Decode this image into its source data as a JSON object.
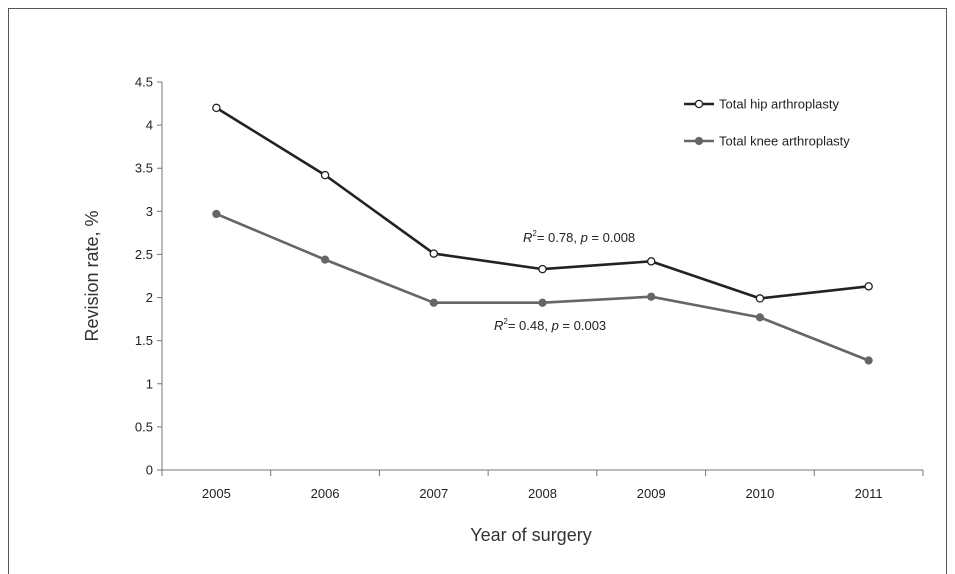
{
  "chart_data": {
    "type": "line",
    "title": "",
    "xlabel": "Year of surgery",
    "ylabel": "Revision rate, %",
    "categories": [
      "2005",
      "2006",
      "2007",
      "2008",
      "2009",
      "2010",
      "2011"
    ],
    "ylim": [
      0,
      4.5
    ],
    "yticks": [
      "0",
      "0.5",
      "1",
      "1.5",
      "2",
      "2.5",
      "3",
      "3.5",
      "4",
      "4.5"
    ],
    "grid": false,
    "legend_position": "top-right",
    "series": [
      {
        "name": "Total hip arthroplasty",
        "values": [
          4.2,
          3.42,
          2.51,
          2.33,
          2.42,
          1.99,
          2.13
        ],
        "color": "#222222",
        "marker": "open-circle"
      },
      {
        "name": "Total knee arthroplasty",
        "values": [
          2.97,
          2.44,
          1.94,
          1.94,
          2.01,
          1.77,
          1.27
        ],
        "color": "#666666",
        "marker": "filled-circle"
      }
    ],
    "annotations": [
      {
        "r2_label": "R",
        "r2_value": "= 0.78, ",
        "p_label": "p",
        "p_value": " = 0.008"
      },
      {
        "r2_label": "R",
        "r2_value": "= 0.48, ",
        "p_label": "p",
        "p_value": " = 0.003"
      }
    ],
    "superscript": "2"
  }
}
